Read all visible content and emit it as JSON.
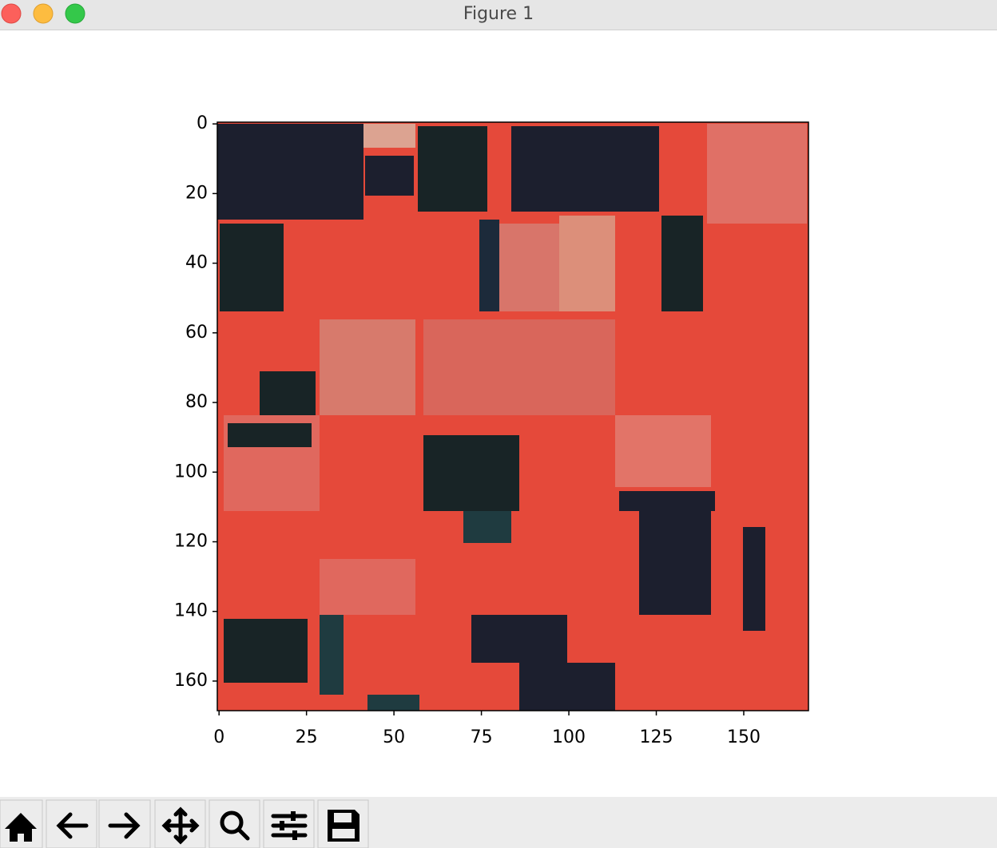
{
  "window": {
    "title": "Figure 1"
  },
  "chart_data": {
    "type": "image",
    "xlim": [
      -0.5,
      168.5
    ],
    "ylim": [
      168.5,
      -0.5
    ],
    "xticks": [
      0,
      25,
      50,
      75,
      100,
      125,
      150
    ],
    "yticks": [
      0,
      20,
      40,
      60,
      80,
      100,
      120,
      140,
      160
    ]
  }
}
